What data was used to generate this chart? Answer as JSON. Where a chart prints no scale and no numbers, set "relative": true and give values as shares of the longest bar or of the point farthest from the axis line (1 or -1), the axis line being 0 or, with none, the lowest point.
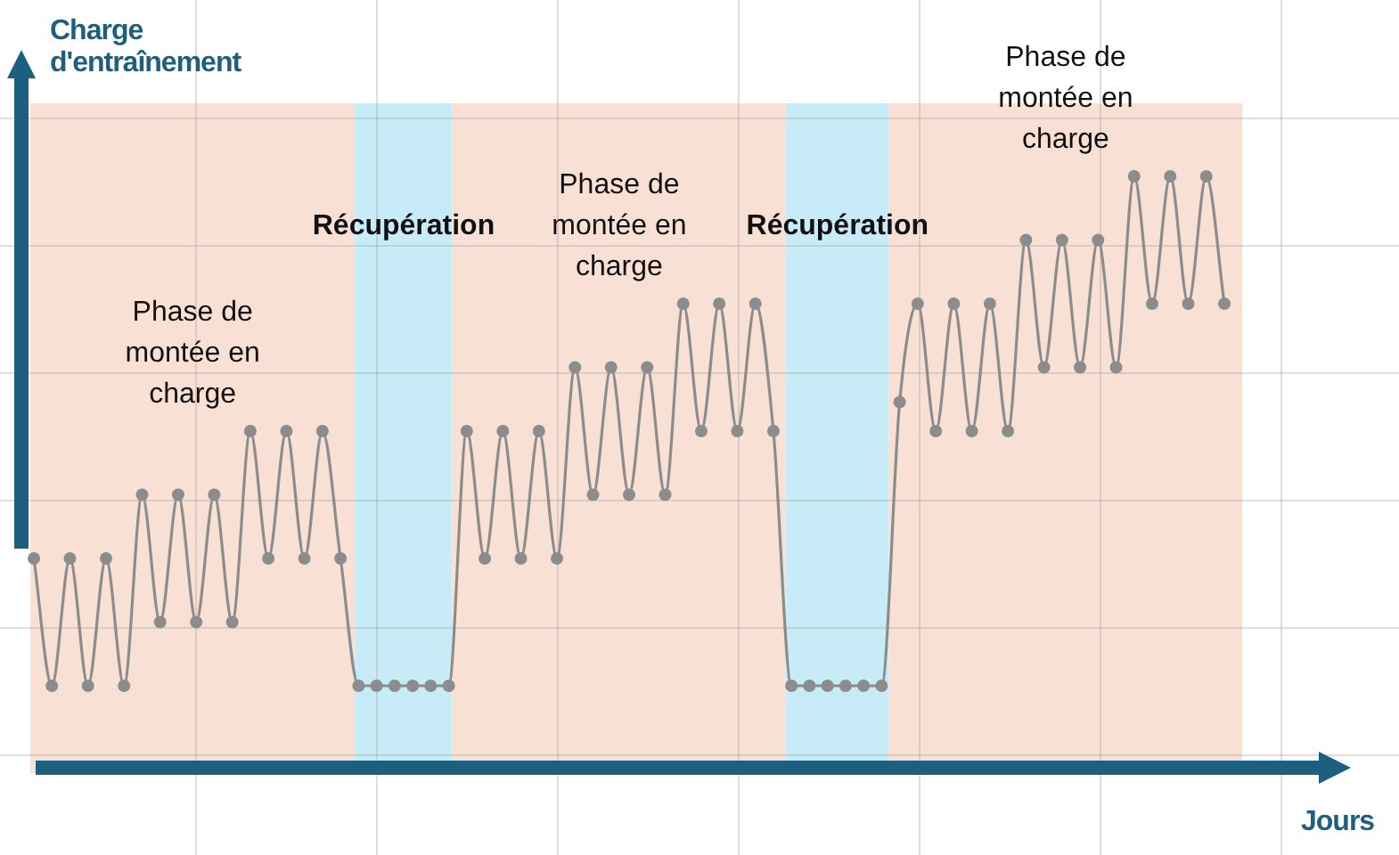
{
  "chart_data": {
    "type": "line",
    "relative": true,
    "xlabel": "Jours",
    "ylabel": "Charge d'entraînement",
    "grid": true,
    "marker": "circle",
    "legend": false,
    "categories": [
      null,
      null,
      null,
      null,
      null,
      null,
      null,
      null,
      null,
      null,
      null,
      null,
      null,
      null,
      null,
      null,
      null,
      null,
      null,
      null,
      null,
      null,
      null,
      null,
      null,
      null,
      null,
      null,
      null,
      null,
      null,
      null,
      null,
      null,
      null,
      null,
      null,
      null,
      null,
      null,
      null,
      null,
      null,
      null,
      null,
      null,
      null,
      null,
      null,
      null,
      null,
      null,
      null,
      null,
      null,
      null,
      null,
      null,
      null,
      null,
      null,
      null,
      null,
      null,
      null,
      null,
      null
    ],
    "series": [
      {
        "color": "#8c8c8c",
        "values": [
          0.34,
          0.12,
          0.34,
          0.12,
          0.34,
          0.12,
          0.45,
          0.23,
          0.45,
          0.23,
          0.45,
          0.23,
          0.56,
          0.34,
          0.56,
          0.34,
          0.56,
          0.34,
          0.12,
          0.12,
          0.12,
          0.12,
          0.12,
          0.12,
          0.56,
          0.34,
          0.56,
          0.34,
          0.56,
          0.34,
          0.67,
          0.45,
          0.67,
          0.45,
          0.67,
          0.45,
          0.78,
          0.56,
          0.78,
          0.56,
          0.78,
          0.56,
          0.12,
          0.12,
          0.12,
          0.12,
          0.12,
          0.12,
          0.61,
          0.78,
          0.56,
          0.78,
          0.56,
          0.78,
          0.56,
          0.89,
          0.67,
          0.89,
          0.67,
          0.89,
          0.67,
          1,
          0.78,
          1,
          0.78,
          1,
          0.78
        ]
      }
    ],
    "annotations": [
      "Phase de montée en charge",
      "Récupération",
      "Phase de montée en charge",
      "Récupération",
      "Phase de montée en charge"
    ]
  }
}
